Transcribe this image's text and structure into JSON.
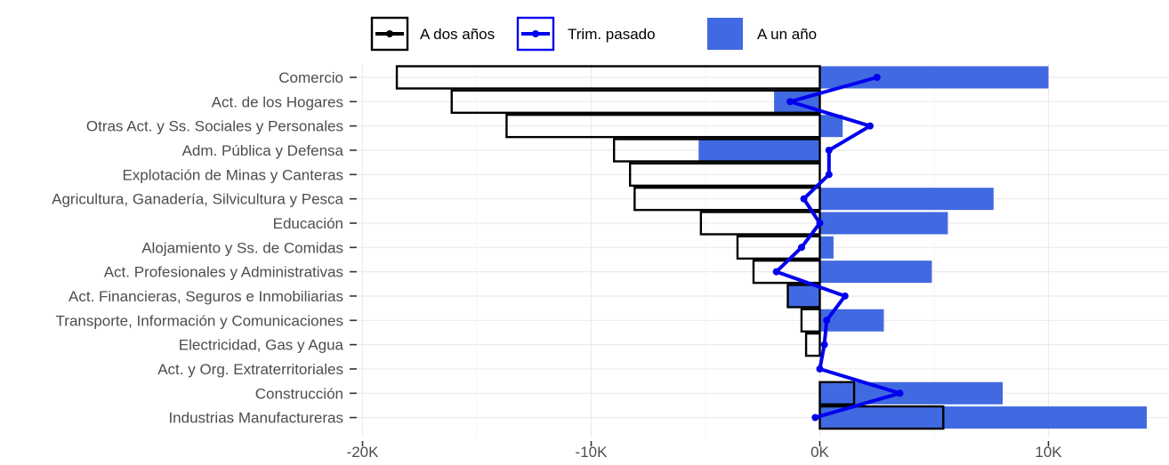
{
  "chart_data": {
    "type": "bar",
    "orientation": "horizontal",
    "categories": [
      "Comercio",
      "Act. de los Hogares",
      "Otras Act. y Ss. Sociales y Personales",
      "Adm. Pública y Defensa",
      "Explotación de Minas y Canteras",
      "Agricultura, Ganadería, Silvicultura y Pesca",
      "Educación",
      "Alojamiento y Ss. de Comidas",
      "Act. Profesionales y Administrativas",
      "Act. Financieras, Seguros e Inmobiliarias",
      "Transporte, Información y Comunicaciones",
      "Electricidad, Gas y Agua",
      "Act. y Org. Extraterritoriales",
      "Construcción",
      "Industrias Manufactureras"
    ],
    "series": [
      {
        "name": "A un año",
        "kind": "bar-filled",
        "color": "#4169E1",
        "values": [
          10000,
          -2000,
          1000,
          -5300,
          0,
          7600,
          5600,
          600,
          4900,
          -1400,
          2800,
          0,
          0,
          8000,
          14300
        ]
      },
      {
        "name": "A dos años",
        "kind": "bar-outline",
        "color": "#000000",
        "values": [
          -18500,
          -16100,
          -13700,
          -9000,
          -8300,
          -8100,
          -5200,
          -3600,
          -2900,
          -1400,
          -800,
          -600,
          0,
          1500,
          5400
        ]
      },
      {
        "name": "Trim. pasado",
        "kind": "line",
        "color": "#0000EE",
        "values": [
          2500,
          -1300,
          2200,
          400,
          400,
          -700,
          0,
          -800,
          -1900,
          1100,
          300,
          200,
          0,
          3500,
          -200
        ]
      }
    ],
    "x_ticks": [
      {
        "value": -20000,
        "label": "-20K"
      },
      {
        "value": -10000,
        "label": "-10K"
      },
      {
        "value": 0,
        "label": "0K"
      },
      {
        "value": 10000,
        "label": "10K"
      }
    ],
    "xlim": [
      -20000,
      14500
    ],
    "grid": true,
    "legend_position": "top",
    "legend_order": [
      "A dos años",
      "Trim. pasado",
      "A un año"
    ],
    "title": "",
    "xlabel": "",
    "ylabel": ""
  }
}
